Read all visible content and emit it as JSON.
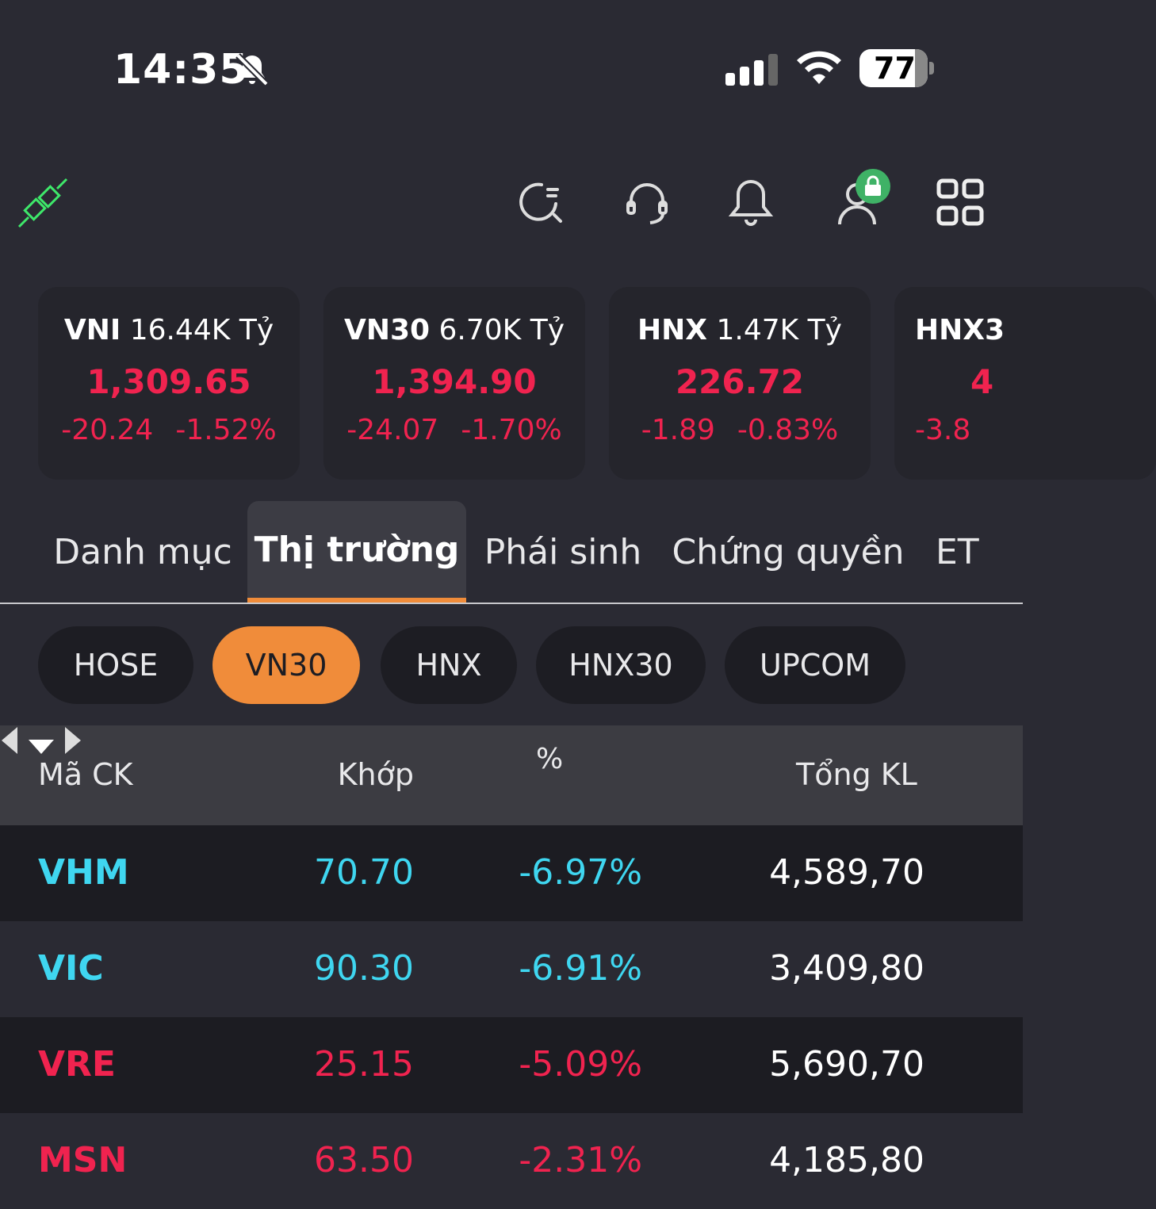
{
  "status_bar": {
    "time": "14:35",
    "battery": "77"
  },
  "colors": {
    "down": "#f0234f",
    "floor": "#3fd6f0",
    "accent": "#f08c3a",
    "connected": "#3ee86a"
  },
  "index_cards": [
    {
      "name": "VNI",
      "value_traded": "16.44K Tỷ",
      "index": "1,309.65",
      "change": "-20.24",
      "percent": "-1.52%"
    },
    {
      "name": "VN30",
      "value_traded": "6.70K Tỷ",
      "index": "1,394.90",
      "change": "-24.07",
      "percent": "-1.70%"
    },
    {
      "name": "HNX",
      "value_traded": "1.47K Tỷ",
      "index": "226.72",
      "change": "-1.89",
      "percent": "-0.83%"
    },
    {
      "name": "HNX3",
      "value_traded": "",
      "index": "4",
      "change": "-3.8",
      "percent": ""
    }
  ],
  "tabs": [
    "Danh mục",
    "Thị trường",
    "Phái sinh",
    "Chứng quyền",
    "ET"
  ],
  "exchanges": [
    "HOSE",
    "VN30",
    "HNX",
    "HNX30",
    "UPCOM"
  ],
  "table": {
    "headers": {
      "symbol": "Mã CK",
      "match": "Khớp",
      "percent": "%",
      "volume": "Tổng KL"
    },
    "rows": [
      {
        "symbol": "VHM",
        "price": "70.70",
        "percent": "-6.97%",
        "volume": "4,589,70",
        "color": "#3fd6f0"
      },
      {
        "symbol": "VIC",
        "price": "90.30",
        "percent": "-6.91%",
        "volume": "3,409,80",
        "color": "#3fd6f0"
      },
      {
        "symbol": "VRE",
        "price": "25.15",
        "percent": "-5.09%",
        "volume": "5,690,70",
        "color": "#f0234f"
      },
      {
        "symbol": "MSN",
        "price": "63.50",
        "percent": "-2.31%",
        "volume": "4,185,80",
        "color": "#f0234f"
      }
    ]
  }
}
